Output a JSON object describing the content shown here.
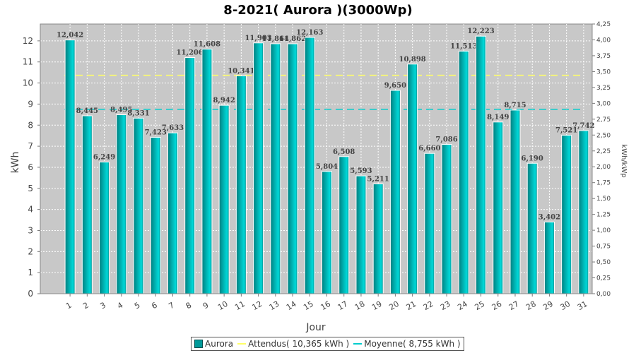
{
  "chart_data": {
    "type": "bar",
    "title": "8-2021( Aurora )(3000Wp)",
    "xlabel": "Jour",
    "ylabel": "kWh",
    "y2label": "kWh/kWp",
    "ylim": [
      0,
      12.8
    ],
    "y2lim": [
      0,
      4.25
    ],
    "yticks": [
      "0",
      "1",
      "2",
      "3",
      "4",
      "5",
      "6",
      "7",
      "8",
      "9",
      "10",
      "11",
      "12"
    ],
    "y2ticks": [
      "0,00",
      "0,25",
      "0,50",
      "0,75",
      "1,00",
      "1,25",
      "1,50",
      "1,75",
      "2,00",
      "2,25",
      "2,50",
      "2,75",
      "3,00",
      "3,25",
      "3,50",
      "3,75",
      "4,00",
      "4,25"
    ],
    "categories": [
      "1",
      "2",
      "3",
      "4",
      "5",
      "6",
      "7",
      "8",
      "9",
      "10",
      "11",
      "12",
      "13",
      "14",
      "15",
      "16",
      "17",
      "18",
      "19",
      "20",
      "21",
      "22",
      "23",
      "24",
      "25",
      "26",
      "27",
      "28",
      "29",
      "30",
      "31"
    ],
    "values": [
      12.042,
      8.445,
      6.249,
      8.495,
      8.331,
      7.423,
      7.633,
      11.206,
      11.608,
      8.942,
      10.341,
      11.903,
      11.864,
      11.862,
      12.163,
      5.804,
      6.508,
      5.593,
      5.211,
      9.65,
      10.898,
      6.66,
      7.086,
      11.513,
      12.223,
      8.149,
      8.715,
      6.19,
      3.402,
      7.521,
      7.742
    ],
    "labels": [
      "12,042",
      "8,445",
      "6,249",
      "8,495",
      "8,331",
      "7,423",
      "7,633",
      "11,206",
      "11,608",
      "8,942",
      "10,341",
      "11,903",
      "11,864",
      "11,862",
      "12,163",
      "5,804",
      "6,508",
      "5,593",
      "5,211",
      "9,650",
      "10,898",
      "6,660",
      "7,086",
      "11,513",
      "12,223",
      "8,149",
      "8,715",
      "6,190",
      "3,402",
      "7,521",
      "7,742"
    ],
    "expected": 10.365,
    "average": 8.755,
    "grid": true,
    "legend_position": "bottom",
    "legend": [
      {
        "name": "Aurora",
        "kind": "bar",
        "color": "#00b3b3"
      },
      {
        "name": "Attendus( 10,365 kWh )",
        "kind": "line",
        "color": "#ffff66"
      },
      {
        "name": "Moyenne( 8,755 kWh )",
        "kind": "line",
        "color": "#00cccc"
      }
    ],
    "colors": {
      "plot_bg": "#c8c8c8",
      "bar": "#00b3b3",
      "bar_edge": "#ffffff",
      "expected": "#ffff66",
      "average": "#00cccc"
    }
  }
}
